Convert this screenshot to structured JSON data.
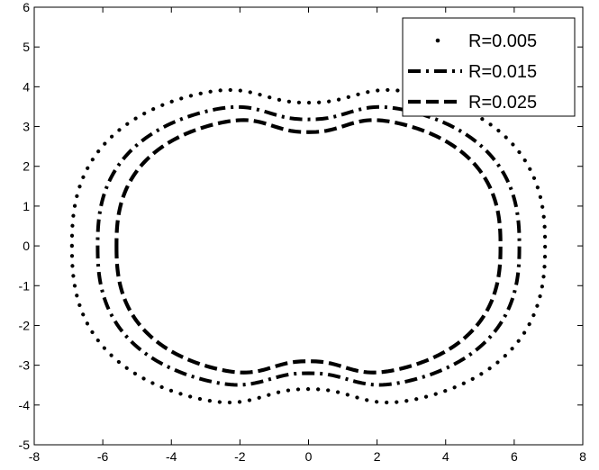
{
  "chart_data": {
    "type": "line",
    "title": "",
    "xlabel": "",
    "ylabel": "",
    "xlim": [
      -8,
      8
    ],
    "ylim": [
      -5,
      6
    ],
    "xticks": [
      "-8",
      "-6",
      "-4",
      "-2",
      "0",
      "2",
      "4",
      "6",
      "8"
    ],
    "yticks": [
      "-5",
      "-4",
      "-3",
      "-2",
      "-1",
      "0",
      "1",
      "2",
      "3",
      "4",
      "5",
      "6"
    ],
    "grid": false,
    "legend_position": "top-right",
    "series": [
      {
        "name": "R=0.005",
        "style": "dotted",
        "color": "#000000",
        "shape": {
          "a": 6.9,
          "top_notch": 3.6,
          "top_peak": 4.06,
          "bottom_notch": -3.6,
          "bottom_peak": -4.08
        }
      },
      {
        "name": "R=0.015",
        "style": "dashdot",
        "color": "#000000",
        "shape": {
          "a": 6.15,
          "top_notch": 3.18,
          "top_peak": 3.62,
          "bottom_notch": -3.2,
          "bottom_peak": -3.62
        }
      },
      {
        "name": "R=0.025",
        "style": "dashed",
        "color": "#000000",
        "shape": {
          "a": 5.6,
          "top_notch": 2.86,
          "top_peak": 3.28,
          "bottom_notch": -2.9,
          "bottom_peak": -3.3
        }
      }
    ]
  }
}
